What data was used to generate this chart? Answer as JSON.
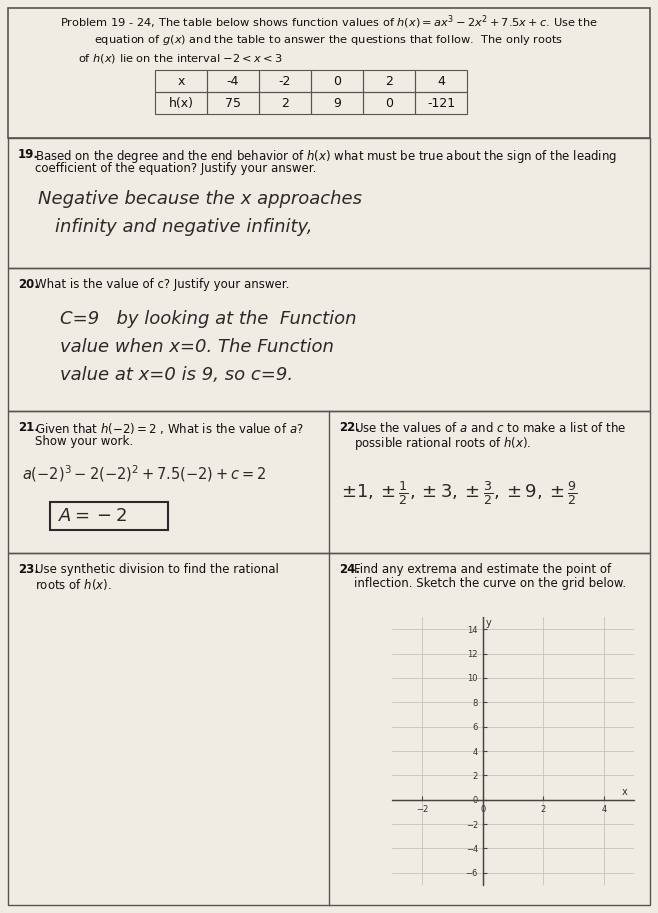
{
  "bg_color": "#d8d0c8",
  "paper_color": "#f0ebe3",
  "header_line1": "Problem 19 - 24, The table below shows function values of $h(x) = ax^3 - 2x^2 + 7.5x + c$. Use the",
  "header_line2": "equation of $g(x)$ and the table to answer the questions that follow.  The only roots",
  "header_line3": "of $h(x)$ lie on the interval $-2 < x < 3$",
  "table_x": [
    "-4",
    "-2",
    "0",
    "2",
    "4"
  ],
  "table_hx": [
    "75",
    "2",
    "9",
    "0",
    "-121"
  ],
  "q19_num": "19.",
  "q19_text1": "Based on the degree and the end behavior of $h(x)$ what must be true about the sign of the leading",
  "q19_text2": "coefficient of the equation? Justify your answer.",
  "q19_ans1": "Negative because the x approaches",
  "q19_ans2": "infinity and negative infinity,",
  "q20_num": "20.",
  "q20_text": "What is the value of c? Justify your answer.",
  "q20_ans1": "C=9   by looking at the  Function",
  "q20_ans2": "value when x=0. The Function",
  "q20_ans3": "value at x=0 is 9, so c=9.",
  "q21_num": "21.",
  "q21_text1": "Given that $h(-2) = 2$ , What is the value of $a$?",
  "q21_text2": "Show your work.",
  "q21_ans1": "$a(-2)^3-2(-2)^2+7.5(-2)+c=2$",
  "q21_ans_box": "$A = -2$",
  "q22_num": "22.",
  "q22_text1": "Use the values of $a$ and $c$ to make a list of the",
  "q22_text2": "possible rational roots of $h(x)$.",
  "q22_ans": "$\\pm 1, \\pm\\frac{1}{2}, \\pm 3, \\pm\\frac{3}{2}, \\pm 9, \\pm\\frac{9}{2}$",
  "q23_num": "23.",
  "q23_text1": "Use synthetic division to find the rational",
  "q23_text2": "roots of $h(x)$.",
  "q24_num": "24.",
  "q24_text1": "Find any extrema and estimate the point of",
  "q24_text2": "inflection. Sketch the curve on the grid below.",
  "grid_xlim": [
    -3,
    5
  ],
  "grid_ylim": [
    -7,
    15
  ],
  "grid_xticks": [
    -2,
    0,
    2,
    4
  ],
  "grid_yticks": [
    -6,
    -4,
    -2,
    0,
    2,
    4,
    6,
    8,
    10,
    12,
    14
  ]
}
